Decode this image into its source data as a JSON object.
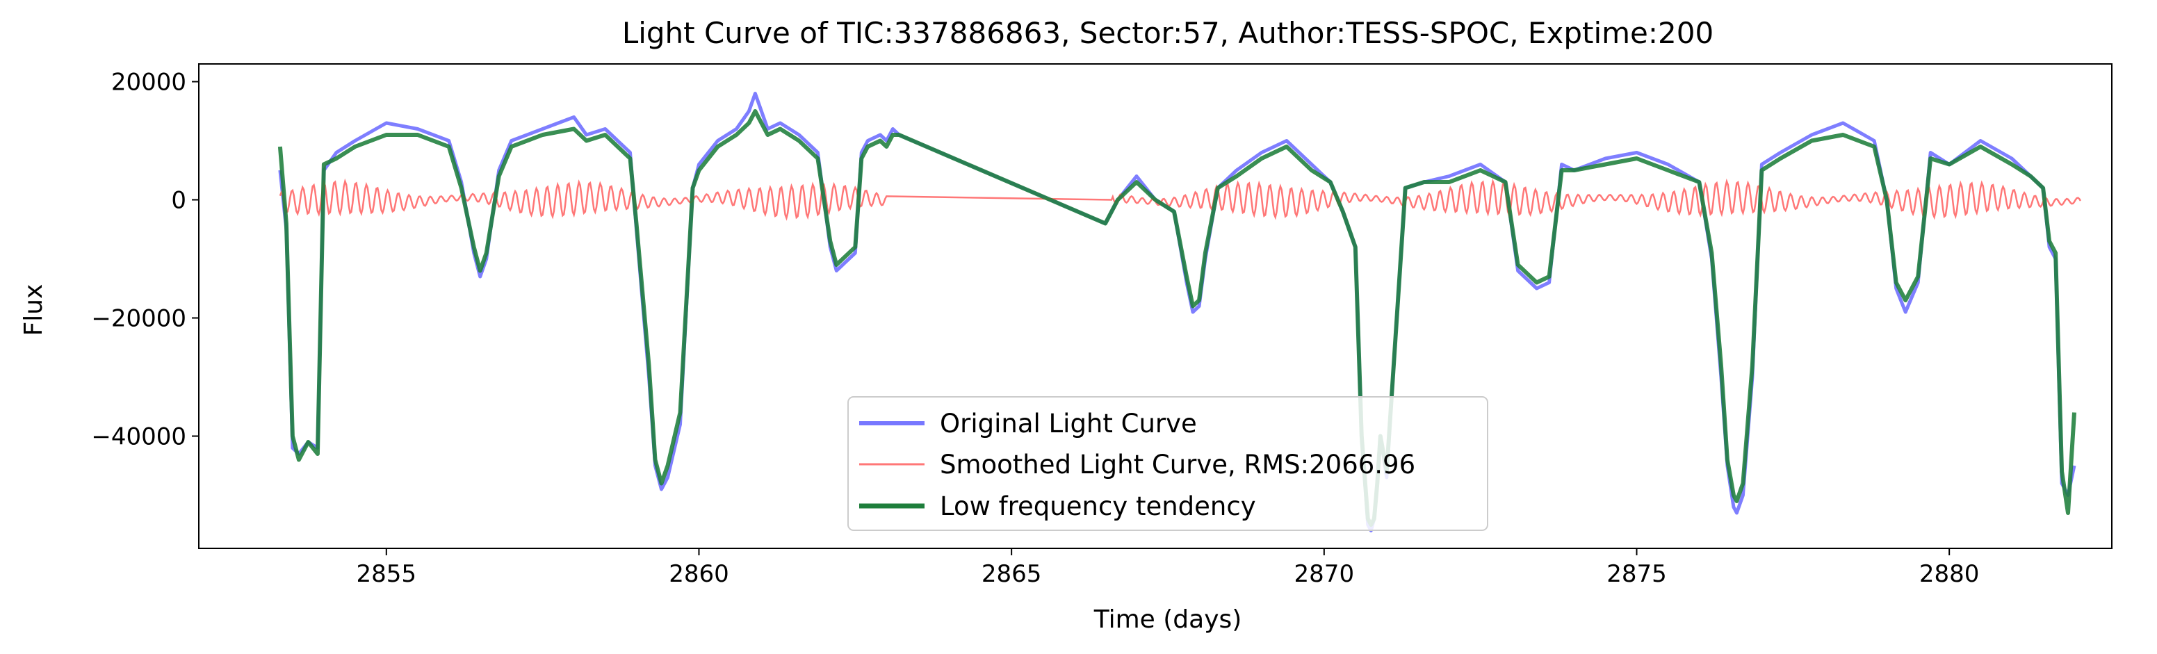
{
  "chart_data": {
    "type": "line",
    "title": "Light Curve of TIC:337886863, Sector:57, Author:TESS-SPOC, Exptime:200",
    "xlabel": "Time (days)",
    "ylabel": "Flux",
    "xlim": [
      2852.0,
      2882.6
    ],
    "ylim": [
      -59000,
      23000
    ],
    "x_ticks": [
      2855,
      2860,
      2865,
      2870,
      2875,
      2880
    ],
    "y_ticks": [
      20000,
      0,
      -20000,
      -40000
    ],
    "y_tick_labels": [
      "20000",
      "0",
      "−20000",
      "−40000"
    ],
    "grid": false,
    "legend_position": "lower center",
    "series": [
      {
        "name": "Original Light Curve",
        "color": "#7777ff",
        "x": [
          2853.3,
          2853.4,
          2853.5,
          2853.6,
          2853.75,
          2853.9,
          2854.0,
          2854.2,
          2854.5,
          2855.0,
          2855.5,
          2856.0,
          2856.2,
          2856.4,
          2856.5,
          2856.6,
          2856.8,
          2857.0,
          2857.5,
          2858.0,
          2858.2,
          2858.5,
          2858.9,
          2859.0,
          2859.2,
          2859.3,
          2859.4,
          2859.5,
          2859.7,
          2859.9,
          2860.0,
          2860.3,
          2860.6,
          2860.8,
          2860.9,
          2861.1,
          2861.3,
          2861.6,
          2861.9,
          2862.1,
          2862.2,
          2862.3,
          2862.5,
          2862.6,
          2862.7,
          2862.9,
          2863.0,
          2863.1,
          2863.2,
          2866.5,
          2866.7,
          2867.0,
          2867.3,
          2867.6,
          2867.8,
          2867.9,
          2868.0,
          2868.1,
          2868.3,
          2868.6,
          2869.0,
          2869.4,
          2869.8,
          2870.1,
          2870.3,
          2870.5,
          2870.6,
          2870.7,
          2870.75,
          2870.8,
          2870.85,
          2870.9,
          2871.0,
          2871.1,
          2871.3,
          2871.6,
          2872.0,
          2872.5,
          2872.9,
          2873.1,
          2873.3,
          2873.4,
          2873.6,
          2873.8,
          2874.0,
          2874.5,
          2875.0,
          2875.5,
          2876.0,
          2876.2,
          2876.35,
          2876.45,
          2876.55,
          2876.6,
          2876.7,
          2876.85,
          2877.0,
          2877.3,
          2877.8,
          2878.3,
          2878.8,
          2879.0,
          2879.15,
          2879.3,
          2879.5,
          2879.7,
          2880.0,
          2880.5,
          2881.0,
          2881.3,
          2881.5,
          2881.6,
          2881.7,
          2881.8,
          2881.9,
          2882.0
        ],
        "y": [
          5000,
          -5000,
          -42000,
          -43000,
          -41000,
          -42000,
          5000,
          8000,
          10000,
          13000,
          12000,
          10000,
          3000,
          -9000,
          -13000,
          -10000,
          5000,
          10000,
          12000,
          14000,
          11000,
          12000,
          8000,
          -5000,
          -30000,
          -45000,
          -49000,
          -47000,
          -38000,
          2000,
          6000,
          10000,
          12000,
          15000,
          18000,
          12000,
          13000,
          11000,
          8000,
          -8000,
          -12000,
          -11000,
          -9000,
          8000,
          10000,
          11000,
          10000,
          12000,
          11000,
          -4000,
          0,
          4000,
          0,
          -2000,
          -14000,
          -19000,
          -18000,
          -10000,
          2000,
          5000,
          8000,
          10000,
          6000,
          3000,
          -2000,
          -8000,
          -40000,
          -55000,
          -56000,
          -54000,
          -48000,
          -40000,
          -47000,
          -30000,
          2000,
          3000,
          4000,
          6000,
          3000,
          -12000,
          -14000,
          -15000,
          -14000,
          6000,
          5000,
          7000,
          8000,
          6000,
          3000,
          -10000,
          -30000,
          -45000,
          -52000,
          -53000,
          -50000,
          -30000,
          6000,
          8000,
          11000,
          13000,
          10000,
          0,
          -15000,
          -19000,
          -14000,
          8000,
          6000,
          10000,
          7000,
          4000,
          2000,
          -8000,
          -10000,
          -48000,
          -50000,
          -45000
        ],
        "linewidth": 5
      },
      {
        "name": "Smoothed Light Curve, RMS:2066.96",
        "color": "#ff7777",
        "x": [
          2853.3,
          2863.0,
          2866.6,
          2882.1
        ],
        "y": [
          0,
          0,
          0,
          0
        ],
        "amplitude": 2300,
        "gap_x": [
          2863.0,
          2866.6
        ],
        "linewidth": 2.5
      },
      {
        "name": "Low frequency tendency",
        "color": "#1e7e3b",
        "x": [
          2853.3,
          2853.4,
          2853.5,
          2853.6,
          2853.75,
          2853.9,
          2854.0,
          2854.2,
          2854.5,
          2855.0,
          2855.5,
          2856.0,
          2856.2,
          2856.4,
          2856.5,
          2856.6,
          2856.8,
          2857.0,
          2857.5,
          2858.0,
          2858.2,
          2858.5,
          2858.9,
          2859.0,
          2859.2,
          2859.3,
          2859.4,
          2859.5,
          2859.7,
          2859.9,
          2860.0,
          2860.3,
          2860.6,
          2860.8,
          2860.9,
          2861.1,
          2861.3,
          2861.6,
          2861.9,
          2862.1,
          2862.2,
          2862.3,
          2862.5,
          2862.6,
          2862.7,
          2862.9,
          2863.0,
          2863.1,
          2863.2,
          2866.5,
          2866.7,
          2867.0,
          2867.3,
          2867.6,
          2867.8,
          2867.9,
          2868.0,
          2868.1,
          2868.3,
          2868.6,
          2869.0,
          2869.4,
          2869.8,
          2870.1,
          2870.3,
          2870.5,
          2870.6,
          2870.7,
          2870.75,
          2870.8,
          2870.85,
          2870.9,
          2871.0,
          2871.1,
          2871.3,
          2871.6,
          2872.0,
          2872.5,
          2872.9,
          2873.1,
          2873.3,
          2873.4,
          2873.6,
          2873.8,
          2874.0,
          2874.5,
          2875.0,
          2875.5,
          2876.0,
          2876.2,
          2876.35,
          2876.45,
          2876.55,
          2876.6,
          2876.7,
          2876.85,
          2877.0,
          2877.3,
          2877.8,
          2878.3,
          2878.8,
          2879.0,
          2879.15,
          2879.3,
          2879.5,
          2879.7,
          2880.0,
          2880.5,
          2881.0,
          2881.3,
          2881.5,
          2881.6,
          2881.7,
          2881.8,
          2881.9,
          2882.0
        ],
        "y": [
          9000,
          -4000,
          -40000,
          -44000,
          -41000,
          -43000,
          6000,
          7000,
          9000,
          11000,
          11000,
          9000,
          2000,
          -8000,
          -12000,
          -9000,
          4000,
          9000,
          11000,
          12000,
          10000,
          11000,
          7000,
          -4000,
          -28000,
          -44000,
          -48000,
          -45000,
          -36000,
          2000,
          5000,
          9000,
          11000,
          13000,
          15000,
          11000,
          12000,
          10000,
          7000,
          -7000,
          -11000,
          -10000,
          -8000,
          7000,
          9000,
          10000,
          9000,
          11000,
          11000,
          -4000,
          0,
          3000,
          0,
          -2000,
          -13000,
          -18000,
          -17000,
          -9000,
          2000,
          4000,
          7000,
          9000,
          5000,
          3000,
          -2000,
          -8000,
          -40000,
          -54000,
          -55000,
          -54000,
          -48000,
          -40000,
          -46000,
          -30000,
          2000,
          3000,
          3000,
          5000,
          3000,
          -11000,
          -13000,
          -14000,
          -13000,
          5000,
          5000,
          6000,
          7000,
          5000,
          3000,
          -9000,
          -28000,
          -44000,
          -50000,
          -51000,
          -48000,
          -28000,
          5000,
          7000,
          10000,
          11000,
          9000,
          0,
          -14000,
          -17000,
          -13000,
          7000,
          6000,
          9000,
          6000,
          4000,
          2000,
          -7000,
          -9000,
          -46000,
          -53000,
          -36000
        ],
        "linewidth": 6
      }
    ]
  }
}
